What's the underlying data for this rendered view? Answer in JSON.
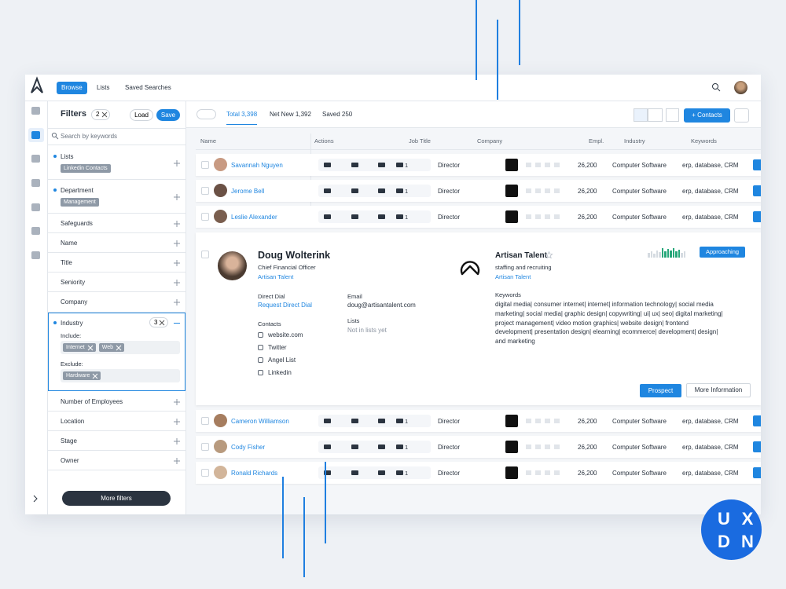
{
  "nav": {
    "tabs": [
      "Browse",
      "Lists",
      "Saved Searches"
    ]
  },
  "filters": {
    "title": "Filters",
    "count": "2",
    "load": "Load",
    "save": "Save",
    "search_placeholder": "Search by keywords",
    "sections": [
      {
        "label": "Lists",
        "tags": [
          "Linkedin Contacts"
        ]
      },
      {
        "label": "Department",
        "tags": [
          "Management"
        ]
      },
      {
        "label": "Safeguards"
      },
      {
        "label": "Name"
      },
      {
        "label": "Title"
      },
      {
        "label": "Seniority"
      },
      {
        "label": "Company"
      },
      {
        "label": "Industry",
        "count": "3",
        "include_label": "Include:",
        "include": [
          "Internet",
          "Web"
        ],
        "exclude_label": "Exclude:",
        "exclude": [
          "Hardware"
        ]
      },
      {
        "label": "Number of Employees"
      },
      {
        "label": "Location"
      },
      {
        "label": "Stage"
      },
      {
        "label": "Owner"
      }
    ],
    "more_filters": "More filters"
  },
  "toolbar": {
    "tabs": [
      "Total 3,398",
      "Net New 1,392",
      "Saved 250"
    ],
    "add_contacts": "+ Contacts"
  },
  "table": {
    "columns": [
      "Name",
      "Actions",
      "Job Title",
      "Company",
      "Empl.",
      "Industry",
      "Keywords"
    ],
    "rows": [
      {
        "name": "Savannah Nguyen",
        "list_count": "1",
        "title": "Director",
        "employees": "26,200",
        "industry": "Computer Software",
        "keywords": "erp, database, CRM"
      },
      {
        "name": "Jerome Bell",
        "list_count": "1",
        "title": "Director",
        "employees": "26,200",
        "industry": "Computer Software",
        "keywords": "erp, database, CRM"
      },
      {
        "name": "Leslie Alexander",
        "list_count": "1",
        "title": "Director",
        "employees": "26,200",
        "industry": "Computer Software",
        "keywords": "erp, database, CRM"
      },
      {
        "name": "Cameron Williamson",
        "list_count": "1",
        "title": "Director",
        "employees": "26,200",
        "industry": "Computer Software",
        "keywords": "erp, database, CRM"
      },
      {
        "name": "Cody Fisher",
        "list_count": "1",
        "title": "Director",
        "employees": "26,200",
        "industry": "Computer Software",
        "keywords": "erp, database, CRM"
      },
      {
        "name": "Ronald Richards",
        "list_count": "1",
        "title": "Director",
        "employees": "26,200",
        "industry": "Computer Software",
        "keywords": "erp, database, CRM"
      }
    ]
  },
  "detail": {
    "name": "Doug Wolterink",
    "role": "Chief Financial Officer",
    "company": "Artisan Talent",
    "direct_dial_label": "Direct Dial",
    "direct_dial": "Request Direct Dial",
    "email_label": "Email",
    "email": "doug@artisantalent.com",
    "lists_label": "Lists",
    "lists": "Not in lists yet",
    "contacts_label": "Contacts",
    "contacts": [
      "website.com",
      "Twitter",
      "Angel List",
      "Linkedin"
    ],
    "company_card": {
      "name": "Artisan Talent",
      "industry": "staffing and recruiting",
      "link": "Artisan Talent"
    },
    "keywords_label": "Keywords",
    "keywords": "digital media| consumer internet| internet| information technology| social media marketing| social media| graphic design| copywriting| ui| ux| seo| digital marketing| project management| video motion graphics| website design| frontend development| presentation design| elearning| ecommerce| development| design| and marketing",
    "status": "Approaching",
    "prospect": "Prospect",
    "more_info": "More Information"
  },
  "badge": [
    "U",
    "X",
    "D",
    "N"
  ]
}
